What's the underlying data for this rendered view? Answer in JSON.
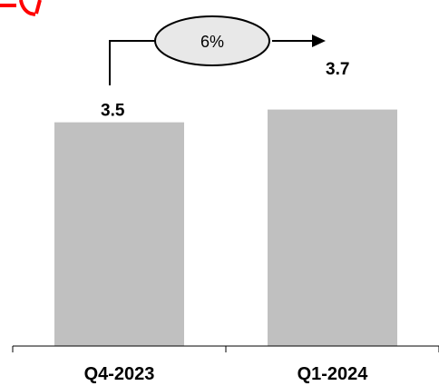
{
  "chart_data": {
    "type": "bar",
    "categories": [
      "Q4-2023",
      "Q1-2024"
    ],
    "values": [
      3.5,
      3.7
    ],
    "value_labels": [
      "3.5",
      "3.7"
    ],
    "growth_label": "6%",
    "title": "",
    "xlabel": "",
    "ylabel": "",
    "ylim": [
      0,
      3.95
    ],
    "grid": false,
    "bar_color": "#C0C0C0",
    "text_color": "#000000",
    "ellipse_fill": "#E8E8E8",
    "clipped_title_color": "#FF0000"
  }
}
